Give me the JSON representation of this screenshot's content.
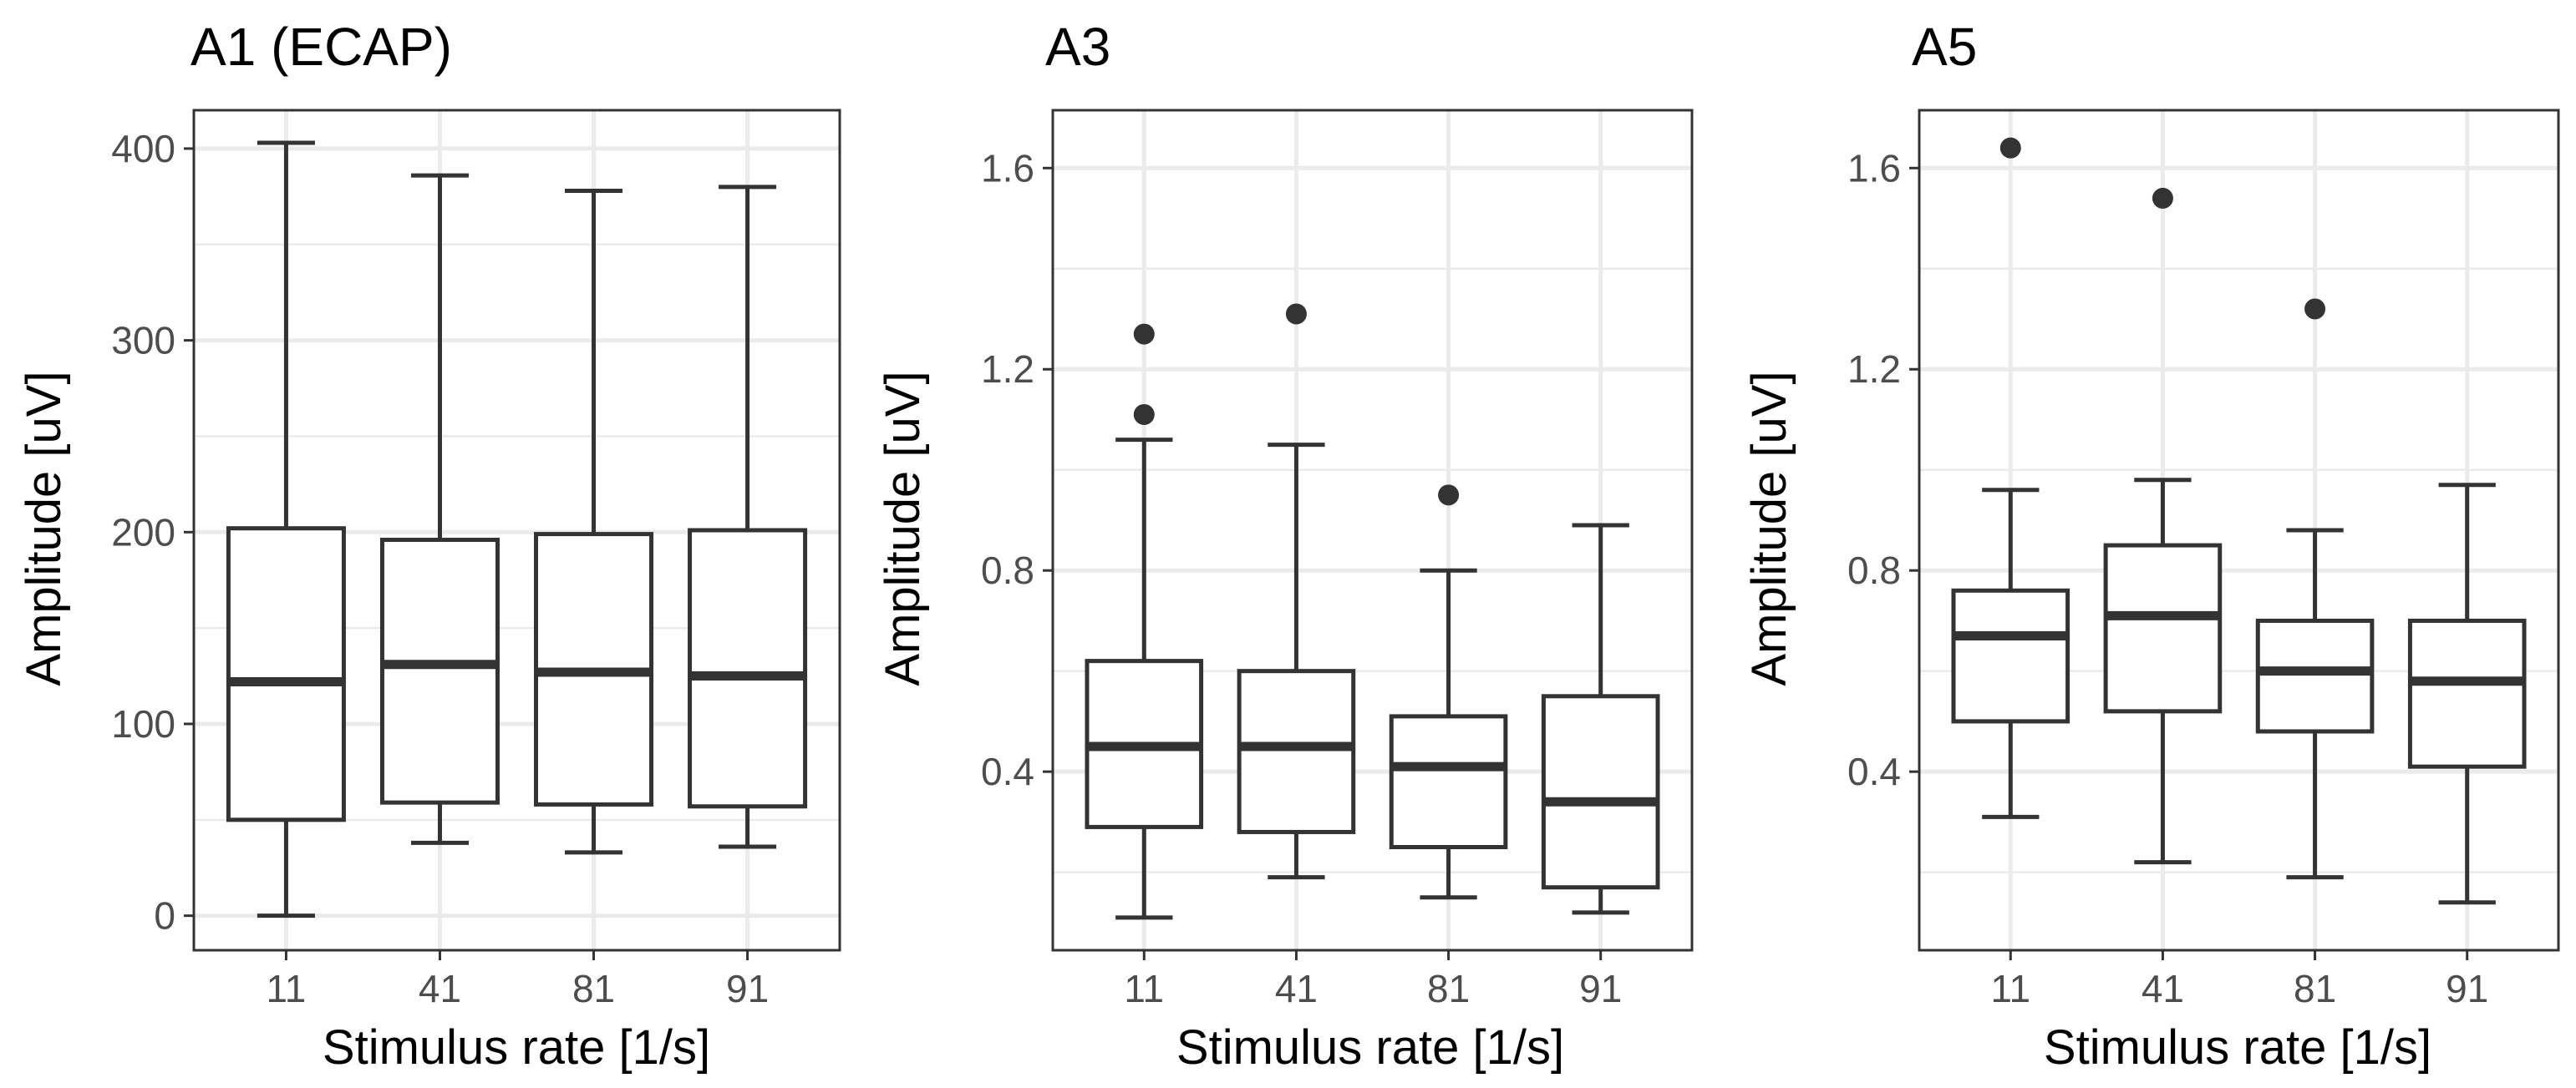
{
  "chart_data": [
    {
      "type": "box",
      "title": "A1 (ECAP)",
      "xlabel": "Stimulus rate [1/s]",
      "ylabel": "Amplitude [uV]",
      "categories": [
        "11",
        "41",
        "81",
        "91"
      ],
      "ylim": [
        -18,
        420
      ],
      "yticks": [
        0,
        100,
        200,
        300,
        400
      ],
      "ytick_labels": [
        "0",
        "100",
        "200",
        "300",
        "400"
      ],
      "yminor": [
        50,
        150,
        250,
        350
      ],
      "boxes": [
        {
          "whisker_low": 0,
          "q1": 50,
          "median": 122,
          "q3": 202,
          "whisker_high": 403,
          "outliers": []
        },
        {
          "whisker_low": 38,
          "q1": 59,
          "median": 131,
          "q3": 196,
          "whisker_high": 386,
          "outliers": []
        },
        {
          "whisker_low": 33,
          "q1": 58,
          "median": 127,
          "q3": 199,
          "whisker_high": 378,
          "outliers": []
        },
        {
          "whisker_low": 36,
          "q1": 57,
          "median": 125,
          "q3": 201,
          "whisker_high": 380,
          "outliers": []
        }
      ]
    },
    {
      "type": "box",
      "title": "A3",
      "xlabel": "Stimulus rate [1/s]",
      "ylabel": "Amplitude [uV]",
      "categories": [
        "11",
        "41",
        "81",
        "91"
      ],
      "ylim": [
        0.045,
        1.715
      ],
      "yticks": [
        0.4,
        0.8,
        1.2,
        1.6
      ],
      "ytick_labels": [
        "0.4",
        "0.8",
        "1.2",
        "1.6"
      ],
      "yminor": [
        0.2,
        0.6,
        1.0,
        1.4
      ],
      "boxes": [
        {
          "whisker_low": 0.11,
          "q1": 0.29,
          "median": 0.45,
          "q3": 0.62,
          "whisker_high": 1.06,
          "outliers": [
            1.11,
            1.27
          ]
        },
        {
          "whisker_low": 0.19,
          "q1": 0.28,
          "median": 0.45,
          "q3": 0.6,
          "whisker_high": 1.05,
          "outliers": [
            1.31
          ]
        },
        {
          "whisker_low": 0.15,
          "q1": 0.25,
          "median": 0.41,
          "q3": 0.51,
          "whisker_high": 0.8,
          "outliers": [
            0.95
          ]
        },
        {
          "whisker_low": 0.12,
          "q1": 0.17,
          "median": 0.34,
          "q3": 0.55,
          "whisker_high": 0.89,
          "outliers": []
        }
      ]
    },
    {
      "type": "box",
      "title": "A5",
      "xlabel": "Stimulus rate [1/s]",
      "ylabel": "Amplitude [uV]",
      "categories": [
        "11",
        "41",
        "81",
        "91"
      ],
      "ylim": [
        0.045,
        1.715
      ],
      "yticks": [
        0.4,
        0.8,
        1.2,
        1.6
      ],
      "ytick_labels": [
        "0.4",
        "0.8",
        "1.2",
        "1.6"
      ],
      "yminor": [
        0.2,
        0.6,
        1.0,
        1.4
      ],
      "boxes": [
        {
          "whisker_low": 0.31,
          "q1": 0.5,
          "median": 0.67,
          "q3": 0.76,
          "whisker_high": 0.96,
          "outliers": [
            1.64
          ]
        },
        {
          "whisker_low": 0.22,
          "q1": 0.52,
          "median": 0.71,
          "q3": 0.85,
          "whisker_high": 0.98,
          "outliers": [
            1.54
          ]
        },
        {
          "whisker_low": 0.19,
          "q1": 0.48,
          "median": 0.6,
          "q3": 0.7,
          "whisker_high": 0.88,
          "outliers": [
            1.32
          ]
        },
        {
          "whisker_low": 0.14,
          "q1": 0.41,
          "median": 0.58,
          "q3": 0.7,
          "whisker_high": 0.97,
          "outliers": []
        }
      ]
    }
  ]
}
